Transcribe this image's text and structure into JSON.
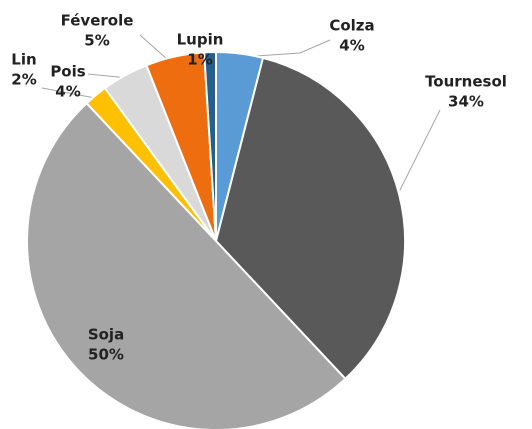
{
  "chart_data": {
    "type": "pie",
    "categories": [
      "Colza",
      "Tournesol",
      "Soja",
      "Lin",
      "Pois",
      "Féverole",
      "Lupin"
    ],
    "values": [
      4,
      34,
      50,
      2,
      4,
      5,
      1
    ],
    "value_labels": [
      "4%",
      "34%",
      "50%",
      "2%",
      "4%",
      "5%",
      "1%"
    ],
    "colors": [
      "#5b9bd5",
      "#595959",
      "#a5a5a5",
      "#ffc000",
      "#d9d9d9",
      "#ed6d0f",
      "#255e91"
    ]
  }
}
